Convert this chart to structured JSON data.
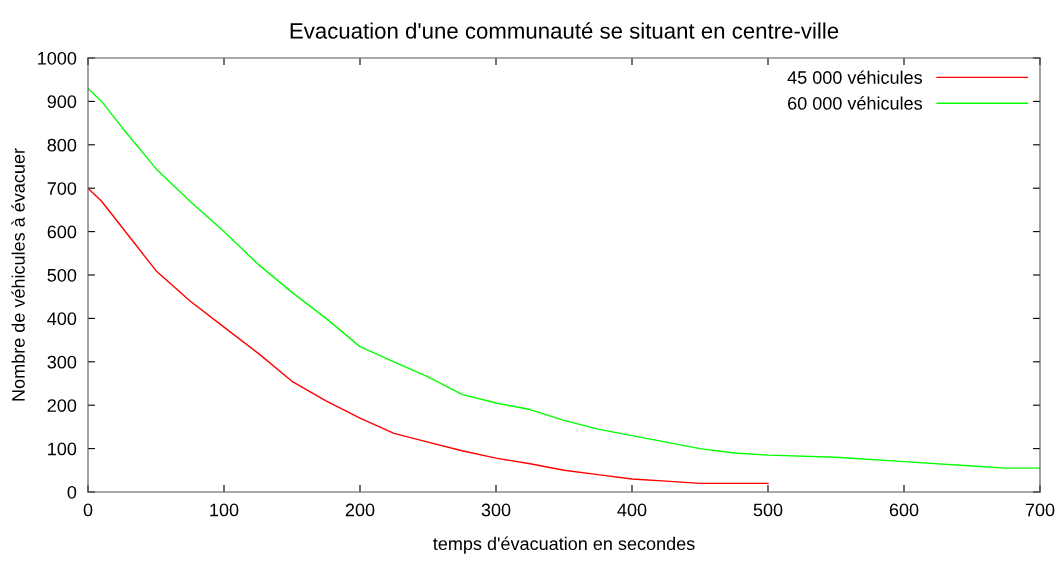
{
  "chart_data": {
    "type": "line",
    "title": "Evacuation d'une communauté se situant en centre-ville",
    "xlabel": "temps d'évacuation en secondes",
    "ylabel": "Nombre de véhicules à évacuer",
    "xlim": [
      0,
      700
    ],
    "xticks": [
      0,
      100,
      200,
      300,
      400,
      500,
      600,
      700
    ],
    "ylim": [
      0,
      1000
    ],
    "yticks": [
      0,
      100,
      200,
      300,
      400,
      500,
      600,
      700,
      800,
      900,
      1000
    ],
    "grid": false,
    "legend": "top right",
    "line_style": "solid",
    "marker": "none",
    "series": [
      {
        "name": "45 000 véhicules",
        "color": "#ff0000",
        "x": [
          0,
          10,
          25,
          50,
          75,
          100,
          125,
          150,
          175,
          200,
          225,
          250,
          275,
          300,
          325,
          350,
          375,
          400,
          425,
          450,
          500
        ],
        "values": [
          700,
          670,
          610,
          510,
          440,
          380,
          320,
          255,
          210,
          170,
          135,
          115,
          95,
          78,
          65,
          50,
          40,
          30,
          25,
          20,
          20
        ]
      },
      {
        "name": "60 000 véhicules",
        "color": "#00ff00",
        "x": [
          0,
          10,
          25,
          50,
          75,
          100,
          125,
          150,
          175,
          200,
          225,
          250,
          275,
          300,
          325,
          350,
          375,
          400,
          425,
          450,
          475,
          500,
          550,
          600,
          650,
          675,
          700
        ],
        "values": [
          930,
          900,
          840,
          745,
          670,
          600,
          525,
          460,
          400,
          335,
          300,
          265,
          225,
          205,
          190,
          165,
          145,
          130,
          115,
          100,
          90,
          85,
          80,
          70,
          60,
          55,
          55
        ]
      }
    ]
  }
}
